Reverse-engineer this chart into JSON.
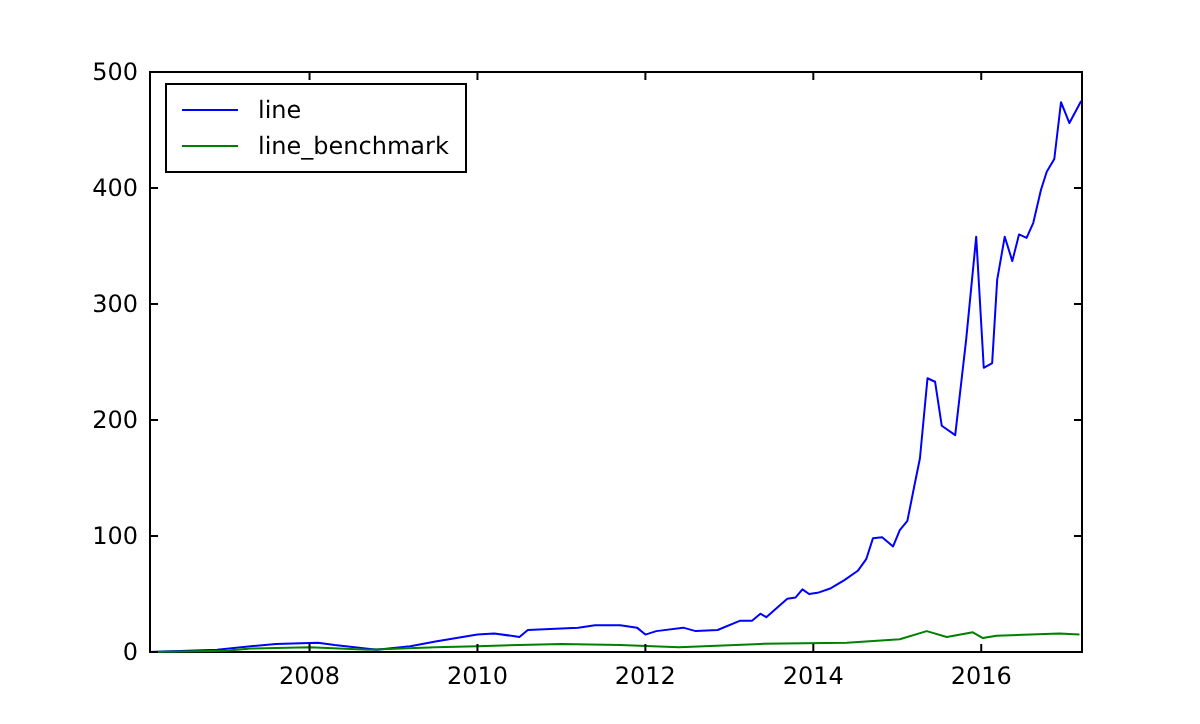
{
  "chart_data": {
    "type": "line",
    "legend": "top left",
    "grid": false,
    "xlim": [
      2006.1,
      2017.2
    ],
    "xticks": [
      2008,
      2010,
      2012,
      2014,
      2016
    ],
    "ylim": [
      0,
      500
    ],
    "yticks": [
      0,
      100,
      200,
      300,
      400,
      500
    ],
    "series": [
      {
        "name": "line",
        "color": "#0000ff",
        "x": [
          2006.1,
          2006.9,
          2007.3,
          2007.6,
          2008.1,
          2008.3,
          2008.8,
          2009.2,
          2009.5,
          2010.0,
          2010.2,
          2010.5,
          2010.6,
          2011.2,
          2011.4,
          2011.7,
          2011.9,
          2012.0,
          2012.13,
          2012.45,
          2012.6,
          2012.86,
          2013.13,
          2013.27,
          2013.37,
          2013.44,
          2013.69,
          2013.79,
          2013.87,
          2013.95,
          2014.05,
          2014.21,
          2014.37,
          2014.53,
          2014.63,
          2014.71,
          2014.82,
          2014.95,
          2015.03,
          2015.12,
          2015.2,
          2015.27,
          2015.36,
          2015.45,
          2015.53,
          2015.69,
          2015.82,
          2015.94,
          2016.03,
          2016.13,
          2016.19,
          2016.28,
          2016.37,
          2016.45,
          2016.54,
          2016.62,
          2016.71,
          2016.78,
          2016.87,
          2016.95,
          2017.05,
          2017.19
        ],
        "values": [
          0,
          2,
          5,
          7,
          8,
          6,
          2,
          5,
          9,
          15,
          16,
          13,
          19,
          21,
          23,
          23,
          21,
          15,
          18,
          21,
          18,
          19,
          27,
          27,
          33,
          30,
          46,
          47,
          54,
          50,
          51,
          55,
          62,
          70,
          80,
          98,
          99,
          91,
          105,
          113,
          142,
          167,
          236,
          233,
          195,
          187,
          269,
          358,
          245,
          249,
          321,
          358,
          337,
          360,
          357,
          370,
          398,
          414,
          425,
          474,
          456,
          475
        ]
      },
      {
        "name": "line_benchmark",
        "color": "#008000",
        "x": [
          2006.1,
          2007.0,
          2007.3,
          2008.0,
          2008.7,
          2009.5,
          2010.0,
          2011.0,
          2011.7,
          2012.4,
          2013.37,
          2014.4,
          2015.03,
          2015.35,
          2015.59,
          2015.9,
          2016.02,
          2016.18,
          2016.93,
          2017.17
        ],
        "values": [
          0,
          1,
          3,
          4,
          2,
          4,
          5,
          7,
          6,
          4,
          7,
          8,
          11,
          18,
          13,
          17,
          12,
          14,
          16,
          15
        ]
      }
    ]
  }
}
